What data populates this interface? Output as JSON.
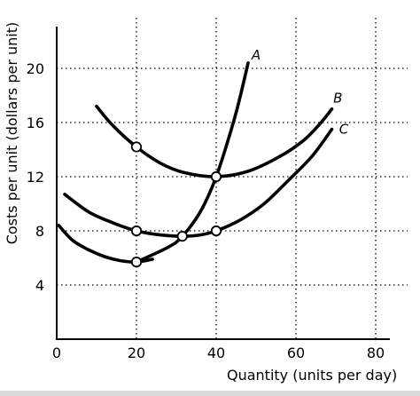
{
  "chart_data": {
    "type": "line",
    "title": "",
    "xlabel": "Quantity (units per day)",
    "ylabel": "Costs per unit (dollars per unit)",
    "xlim": [
      0,
      88
    ],
    "ylim": [
      0,
      24
    ],
    "xticks": [
      0,
      20,
      40,
      60,
      80
    ],
    "xtick_labels": [
      "0",
      "20",
      "40",
      "60",
      "80"
    ],
    "yticks": [
      4,
      8,
      12,
      16,
      20
    ],
    "ytick_labels": [
      "4",
      "8",
      "12",
      "16",
      "20"
    ],
    "grid": "dotted",
    "series": [
      {
        "name": "A",
        "x": [
          20,
          28,
          31.5,
          36,
          40,
          44,
          46,
          48
        ],
        "y": [
          5.7,
          6.8,
          7.6,
          9.4,
          12,
          15.7,
          17.9,
          20.4
        ]
      },
      {
        "name": "B",
        "x": [
          10,
          14,
          20,
          26,
          32,
          40,
          48,
          56,
          62,
          66,
          69
        ],
        "y": [
          17.2,
          15.8,
          14.2,
          13.0,
          12.3,
          12.0,
          12.4,
          13.5,
          14.7,
          15.9,
          17.0
        ]
      },
      {
        "name": "C",
        "x": [
          2,
          8,
          14,
          20,
          26,
          31.5,
          36,
          40,
          46,
          52,
          58,
          64,
          69
        ],
        "y": [
          10.7,
          9.4,
          8.6,
          8.0,
          7.7,
          7.6,
          7.7,
          8.0,
          8.8,
          10.0,
          11.7,
          13.5,
          15.5
        ]
      },
      {
        "name": "",
        "x": [
          0.5,
          4,
          8,
          12,
          16,
          20,
          24
        ],
        "y": [
          8.4,
          7.3,
          6.6,
          6.1,
          5.8,
          5.7,
          5.9
        ]
      }
    ],
    "points": [
      {
        "x": 20,
        "y": 14.2
      },
      {
        "x": 40,
        "y": 12.0
      },
      {
        "x": 20,
        "y": 8.0
      },
      {
        "x": 31.5,
        "y": 7.6
      },
      {
        "x": 40,
        "y": 8.0
      },
      {
        "x": 20,
        "y": 5.7
      }
    ],
    "curve_labels": [
      {
        "text": "A",
        "x": 50,
        "y": 21.0
      },
      {
        "text": "B",
        "x": 70.5,
        "y": 17.8
      },
      {
        "text": "C",
        "x": 72,
        "y": 15.5
      }
    ]
  }
}
